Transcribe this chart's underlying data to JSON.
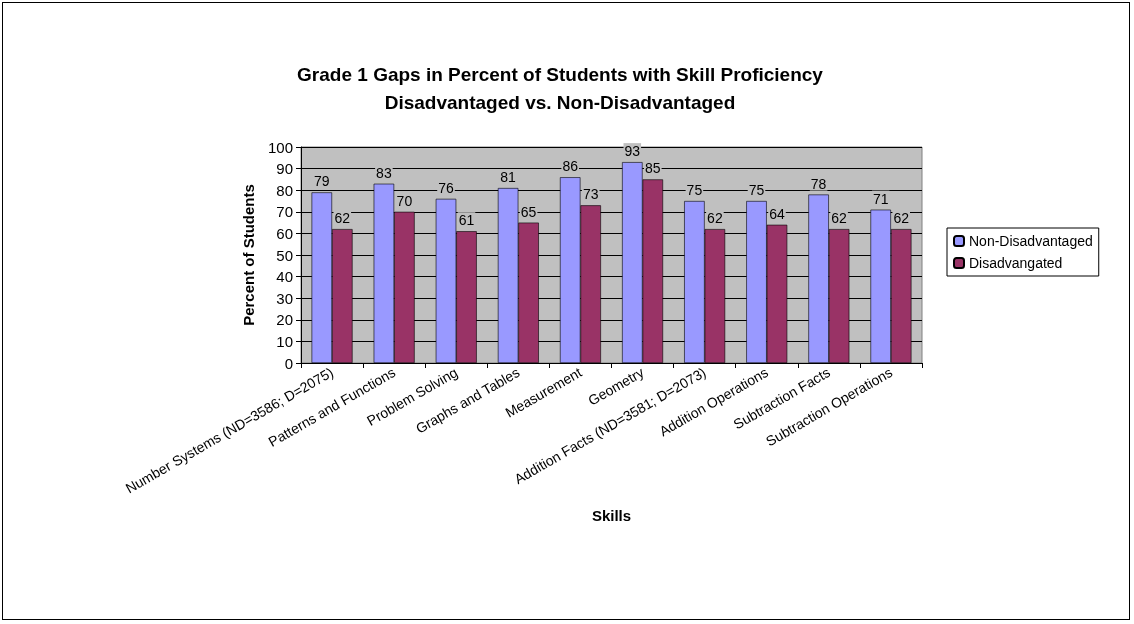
{
  "chart_data": {
    "type": "bar",
    "title": "Grade 1 Gaps in Percent of Students with Skill Proficiency\nDisadvantaged vs. Non-Disadvantaged",
    "xlabel": "Skills",
    "ylabel": "Percent of Students",
    "categories": [
      "Number Systems (ND=3586; D=2075)",
      "Patterns and Functions",
      "Problem Solving",
      "Graphs and Tables",
      "Measurement",
      "Geometry",
      "Addition Facts (ND=3581; D=2073)",
      "Addition Operations",
      "Subtraction Facts",
      "Subtraction Operations"
    ],
    "series": [
      {
        "name": "Non-Disadvantaged",
        "color": "#9999ff",
        "values": [
          79,
          83,
          76,
          81,
          86,
          93,
          75,
          75,
          78,
          71
        ]
      },
      {
        "name": "Disadvangated",
        "color": "#993366",
        "values": [
          62,
          70,
          61,
          65,
          73,
          85,
          62,
          64,
          62,
          62
        ]
      }
    ],
    "ylim": [
      0,
      100
    ],
    "yticks": [
      0,
      10,
      20,
      30,
      40,
      50,
      60,
      70,
      80,
      90,
      100
    ],
    "grid": "y",
    "legend": "right",
    "data_labels": true
  }
}
